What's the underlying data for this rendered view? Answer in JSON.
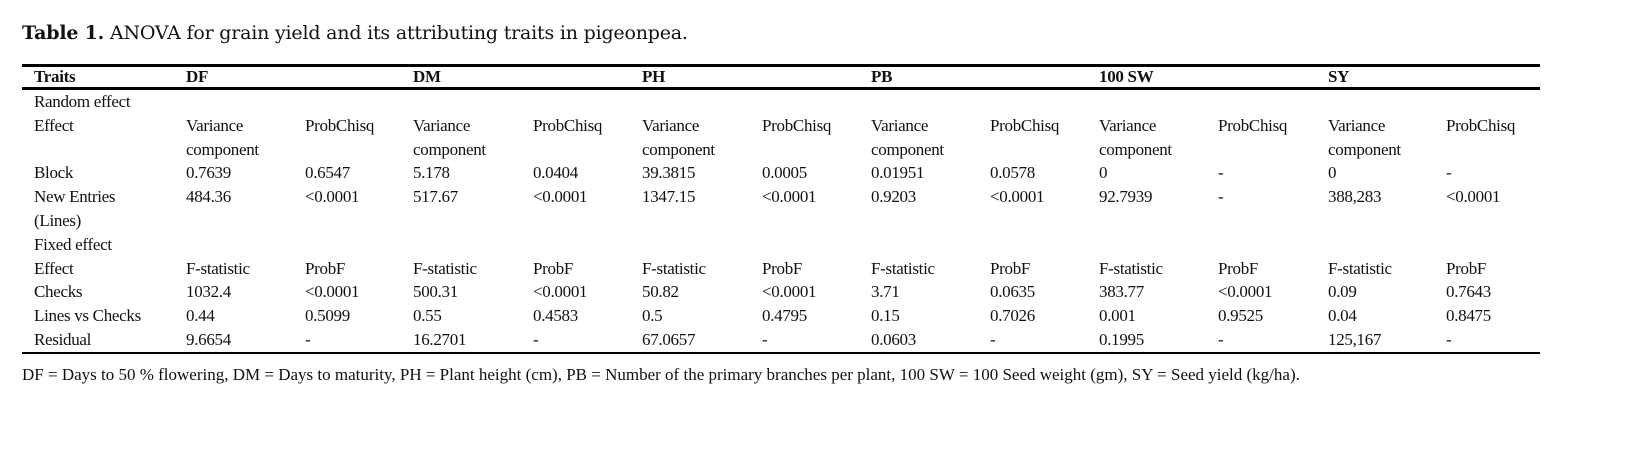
{
  "caption": {
    "label": "Table 1.",
    "text": " ANOVA for grain yield and its attributing traits in pigeonpea."
  },
  "header": [
    "Traits",
    "DF",
    "",
    "DM",
    "",
    "PH",
    "",
    "PB",
    "",
    "100 SW",
    "",
    "SY",
    ""
  ],
  "rows": [
    [
      "Random effect",
      "",
      "",
      "",
      "",
      "",
      "",
      "",
      "",
      "",
      "",
      "",
      ""
    ],
    [
      "Effect",
      "Variance",
      "ProbChisq",
      "Variance",
      "ProbChisq",
      "Variance",
      "ProbChisq",
      "Variance",
      "ProbChisq",
      "Variance",
      "ProbChisq",
      "Variance",
      "ProbChisq"
    ],
    [
      "",
      "component",
      "",
      "component",
      "",
      "component",
      "",
      "component",
      "",
      "component",
      "",
      "component",
      ""
    ],
    [
      "Block",
      "0.7639",
      "0.6547",
      "5.178",
      "0.0404",
      "39.3815",
      "0.0005",
      "0.01951",
      "0.0578",
      "0",
      "-",
      "0",
      "-"
    ],
    [
      "New Entries",
      "484.36",
      "<0.0001",
      "517.67",
      "<0.0001",
      "1347.15",
      "<0.0001",
      "0.9203",
      "<0.0001",
      "92.7939",
      "-",
      "388,283",
      "<0.0001"
    ],
    [
      "(Lines)",
      "",
      "",
      "",
      "",
      "",
      "",
      "",
      "",
      "",
      "",
      "",
      ""
    ],
    [
      "Fixed effect",
      "",
      "",
      "",
      "",
      "",
      "",
      "",
      "",
      "",
      "",
      "",
      ""
    ],
    [
      "Effect",
      "F-statistic",
      "ProbF",
      "F-statistic",
      "ProbF",
      "F-statistic",
      "ProbF",
      "F-statistic",
      "ProbF",
      "F-statistic",
      "ProbF",
      "F-statistic",
      "ProbF"
    ],
    [
      "Checks",
      "1032.4",
      "<0.0001",
      "500.31",
      "<0.0001",
      "50.82",
      "<0.0001",
      "3.71",
      "0.0635",
      "383.77",
      "<0.0001",
      "0.09",
      "0.7643"
    ],
    [
      "Lines vs Checks",
      "0.44",
      "0.5099",
      "0.55",
      "0.4583",
      "0.5",
      "0.4795",
      "0.15",
      "0.7026",
      "0.001",
      "0.9525",
      "0.04",
      "0.8475"
    ],
    [
      "Residual",
      "9.6654",
      "-",
      "16.2701",
      "-",
      "67.0657",
      "-",
      "0.0603",
      "-",
      "0.1995",
      "-",
      "125,167",
      "-"
    ]
  ],
  "footnote": "DF = Days to 50 % flowering, DM = Days to maturity, PH = Plant height (cm), PB = Number of the primary branches per plant, 100 SW = 100 Seed weight (gm), SY = Seed yield (kg/ha)."
}
